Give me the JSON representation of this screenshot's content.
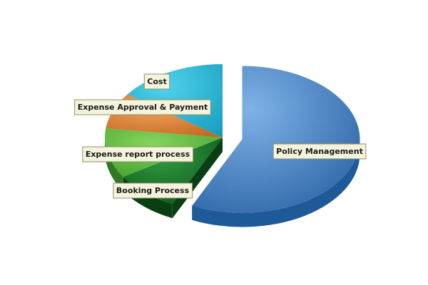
{
  "chart_data": {
    "type": "pie",
    "title": "",
    "slices": [
      {
        "label": "Policy Management",
        "value": 57,
        "color": "#4a85c4",
        "exploded": true
      },
      {
        "label": "Booking Process",
        "value": 9,
        "color": "#1f7a2e",
        "exploded": false
      },
      {
        "label": "Expense report process",
        "value": 11,
        "color": "#56b23e",
        "exploded": false
      },
      {
        "label": "Expense Approval & Payment",
        "value": 8,
        "color": "#e07b2c",
        "exploded": false
      },
      {
        "label": "Cost",
        "value": 15,
        "color": "#1fb7d6",
        "exploded": false
      }
    ],
    "legend": "none",
    "style": "3d"
  }
}
